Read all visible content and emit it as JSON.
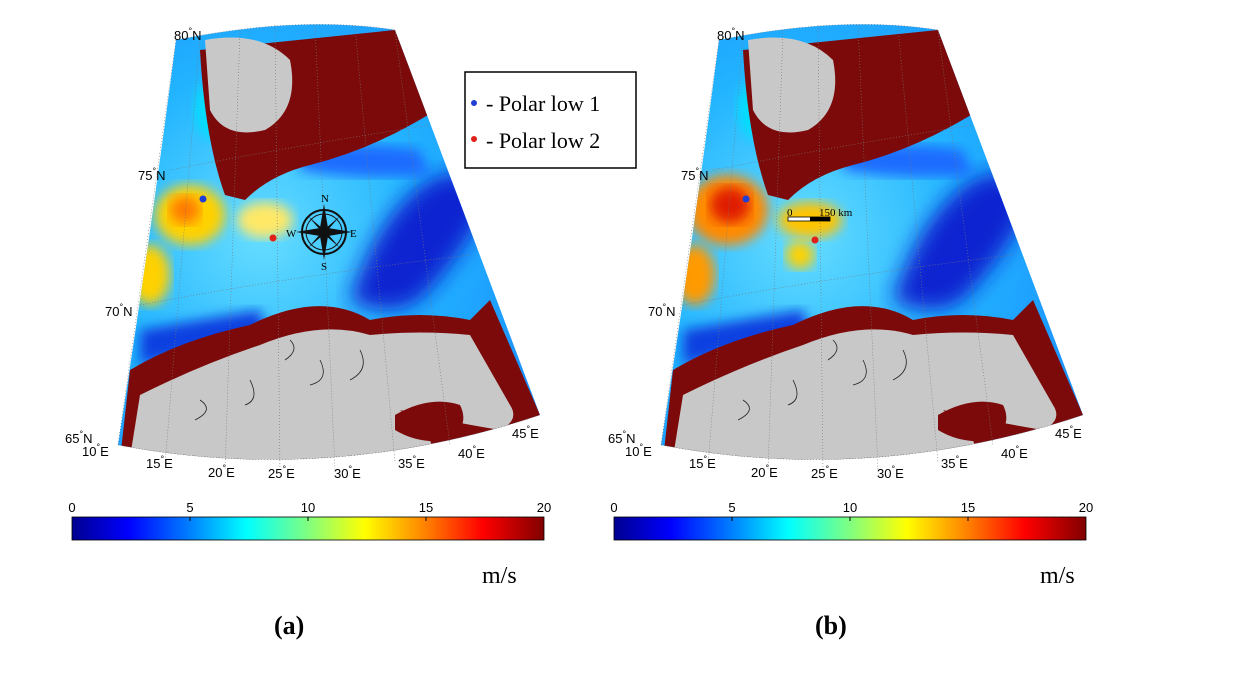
{
  "panels": [
    {
      "id": "a",
      "caption": "(a)",
      "lat_labels": [
        "80",
        "75",
        "70",
        "65"
      ],
      "lat_suffix": "N",
      "lon_labels": [
        "10",
        "15",
        "20",
        "25",
        "30",
        "35",
        "40",
        "45"
      ],
      "lon_suffix": "E",
      "colorbar_ticks": [
        "0",
        "5",
        "10",
        "15",
        "20"
      ],
      "unit": "m/s",
      "compass": {
        "n": "N",
        "s": "S",
        "e": "E",
        "w": "W"
      }
    },
    {
      "id": "b",
      "caption": "(b)",
      "lat_labels": [
        "80",
        "75",
        "70",
        "65"
      ],
      "lat_suffix": "N",
      "lon_labels": [
        "10",
        "15",
        "20",
        "25",
        "30",
        "35",
        "40",
        "45"
      ],
      "lon_suffix": "E",
      "colorbar_ticks": [
        "0",
        "5",
        "10",
        "15",
        "20"
      ],
      "unit": "m/s",
      "scalebar": {
        "start": "0",
        "end": "150 km"
      }
    }
  ],
  "legend": {
    "items": [
      {
        "label": "- Polar low 1",
        "color": "#1f3fd6"
      },
      {
        "label": "- Polar low 2",
        "color": "#e0201a"
      }
    ]
  },
  "colors": {
    "land": "#c8c8c8",
    "coast_band": "#7d0a0a",
    "colormap": [
      "#00008f",
      "#0000ff",
      "#0080ff",
      "#00ffff",
      "#80ff80",
      "#ffff00",
      "#ff8000",
      "#ff0000",
      "#800000"
    ]
  },
  "colorbar_range": [
    0,
    20
  ]
}
